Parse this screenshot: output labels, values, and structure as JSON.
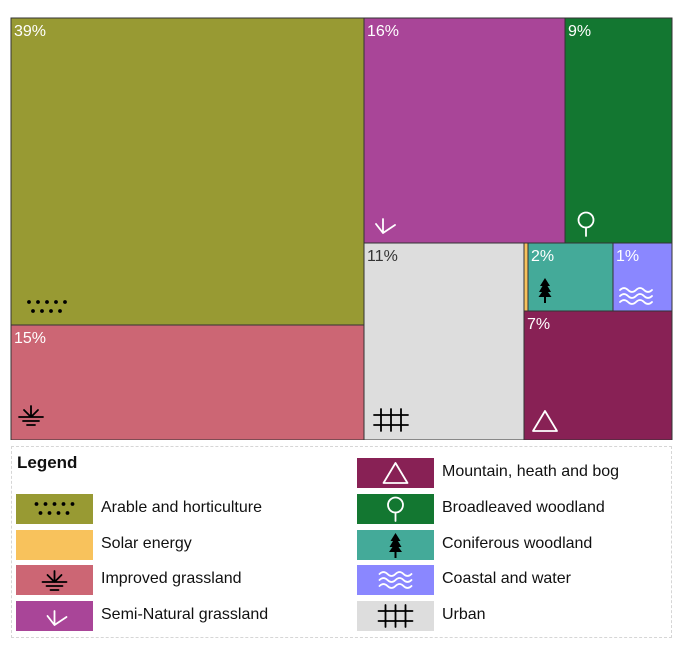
{
  "chart_data": {
    "type": "treemap",
    "legend_title": "Legend",
    "legend_placement": "bottom",
    "categories": [
      {
        "key": "arable",
        "name": "Arable and horticulture",
        "value": 39,
        "label": "39%",
        "color": "#989a33",
        "icon": "dots-icon"
      },
      {
        "key": "solar",
        "name": "Solar energy",
        "value": 0.5,
        "label": "",
        "color": "#f8c25c",
        "icon": "none"
      },
      {
        "key": "improved",
        "name": "Improved grassland",
        "value": 15,
        "label": "15%",
        "color": "#cc6674",
        "icon": "grass-marsh-icon"
      },
      {
        "key": "seminatural",
        "name": "Semi-Natural grassland",
        "value": 16,
        "label": "16%",
        "color": "#a94598",
        "icon": "grass-sprig-icon"
      },
      {
        "key": "mountain",
        "name": "Mountain, heath and bog",
        "value": 7,
        "label": "7%",
        "color": "#882155",
        "icon": "triangle-icon"
      },
      {
        "key": "broadleaved",
        "name": "Broadleaved woodland",
        "value": 9,
        "label": "9%",
        "color": "#137731",
        "icon": "round-tree-icon"
      },
      {
        "key": "coniferous",
        "name": "Coniferous woodland",
        "value": 2,
        "label": "2%",
        "color": "#44aa99",
        "icon": "pine-tree-icon"
      },
      {
        "key": "coastal",
        "name": "Coastal and water",
        "value": 1,
        "label": "1%",
        "color": "#8a87ff",
        "icon": "waves-icon"
      },
      {
        "key": "urban",
        "name": "Urban",
        "value": 11,
        "label": "11%",
        "color": "#dddddd",
        "icon": "grid-hash-icon"
      }
    ]
  }
}
